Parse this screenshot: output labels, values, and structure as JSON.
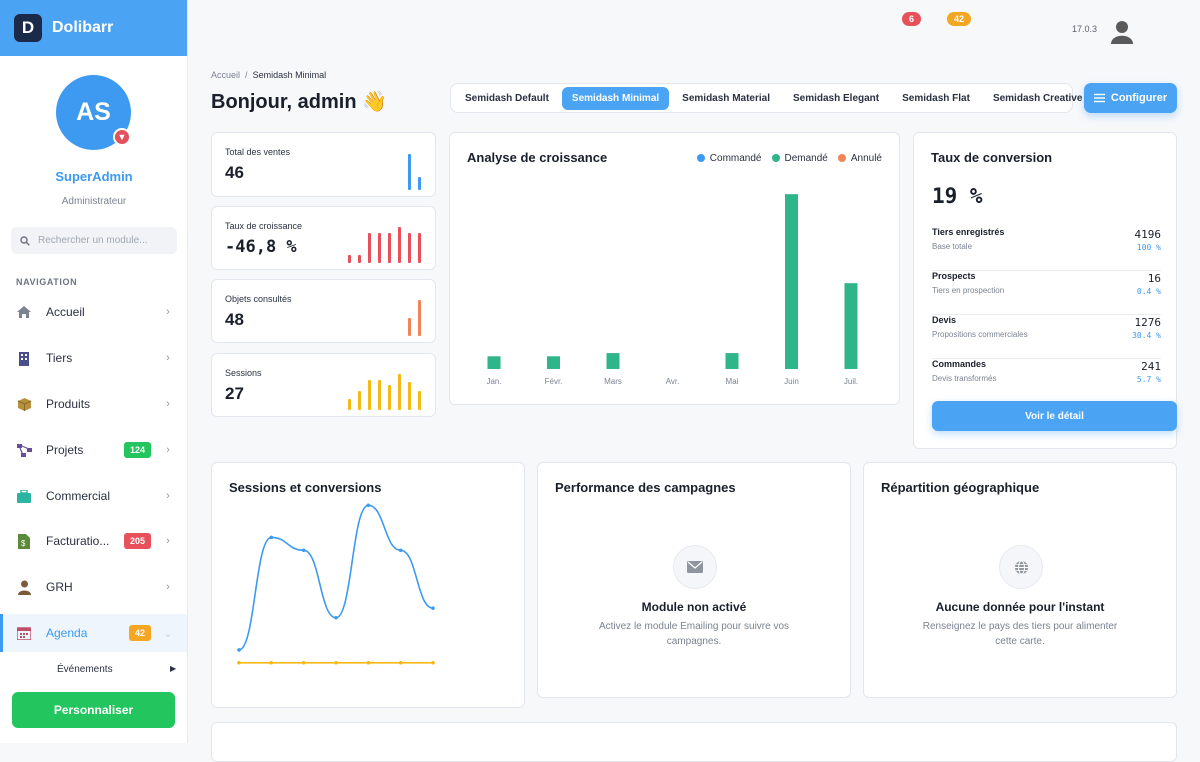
{
  "brand": {
    "name": "Dolibarr",
    "logo_letter": "D"
  },
  "user": {
    "initials": "AS",
    "name": "SuperAdmin",
    "role": "Administrateur"
  },
  "search": {
    "placeholder": "Rechercher un module..."
  },
  "nav": {
    "section_label": "NAVIGATION",
    "items": [
      {
        "label": "Accueil",
        "icon": "home-icon"
      },
      {
        "label": "Tiers",
        "icon": "building-icon"
      },
      {
        "label": "Produits",
        "icon": "box-icon"
      },
      {
        "label": "Projets",
        "icon": "project-icon",
        "badge": "124"
      },
      {
        "label": "Commercial",
        "icon": "briefcase-icon"
      },
      {
        "label": "Facturatio...",
        "icon": "invoice-icon",
        "badge": "205"
      },
      {
        "label": "GRH",
        "icon": "user-icon"
      },
      {
        "label": "Agenda",
        "icon": "calendar-icon",
        "badge": "42"
      }
    ],
    "subitem": "Événements",
    "customize_label": "Personnaliser"
  },
  "topbar": {
    "badge_red": "6",
    "badge_orange": "42",
    "version": "17.0.3"
  },
  "breadcrumb": {
    "root": "Accueil",
    "separator": "/",
    "current": "Semidash Minimal"
  },
  "greeting": "Bonjour, admin 👋",
  "tabs": [
    "Semidash Default",
    "Semidash Minimal",
    "Semidash Material",
    "Semidash Elegant",
    "Semidash Flat",
    "Semidash Creative"
  ],
  "active_tab": "Semidash Minimal",
  "configure_label": "Configurer",
  "kpis": [
    {
      "label": "Total des ventes",
      "value": "46",
      "color": "#3d9af0"
    },
    {
      "label": "Taux de croissance",
      "value": "-46,8 %",
      "color": "#e8505b"
    },
    {
      "label": "Objets consultés",
      "value": "48",
      "color": "#f0855a"
    },
    {
      "label": "Sessions",
      "value": "27",
      "color": "#f5b915"
    }
  ],
  "growth": {
    "title": "Analyse de croissance",
    "legend": [
      {
        "label": "Commandé",
        "color": "#3d9af0"
      },
      {
        "label": "Demandé",
        "color": "#2fb58a"
      },
      {
        "label": "Annulé",
        "color": "#f0855a"
      }
    ]
  },
  "conversion": {
    "title": "Taux de conversion",
    "rate": "19 %",
    "rows": [
      {
        "title": "Tiers enregistrés",
        "sub": "Base totale",
        "num": "4196",
        "pct": "100 %"
      },
      {
        "title": "Prospects",
        "sub": "Tiers en prospection",
        "num": "16",
        "pct": "0.4 %"
      },
      {
        "title": "Devis",
        "sub": "Propositions commerciales",
        "num": "1276",
        "pct": "30.4 %"
      },
      {
        "title": "Commandes",
        "sub": "Devis transformés",
        "num": "241",
        "pct": "5.7 %"
      }
    ],
    "button": "Voir le détail"
  },
  "sessions_card": {
    "title": "Sessions et conversions"
  },
  "campaigns": {
    "title": "Performance des campagnes",
    "empty_title": "Module non activé",
    "empty_text": "Activez le module Emailing pour suivre vos campagnes."
  },
  "geo": {
    "title": "Répartition géographique",
    "empty_title": "Aucune donnée pour l'instant",
    "empty_text": "Renseignez le pays des tiers pour alimenter cette carte."
  },
  "chart_data": [
    {
      "type": "bar",
      "categories": [
        "Jan.",
        "Févr.",
        "Mars",
        "Avr.",
        "Mai",
        "Juin",
        "Juil."
      ],
      "series": [
        {
          "name": "Commandé",
          "values": [
            0,
            0,
            0,
            0,
            0,
            0,
            0
          ]
        },
        {
          "name": "Demandé",
          "values": [
            4,
            4,
            5,
            0,
            5,
            55,
            27
          ]
        },
        {
          "name": "Annulé",
          "values": [
            0,
            0,
            0,
            0,
            0,
            0,
            0
          ]
        }
      ],
      "title": "Analyse de croissance",
      "ylim": [
        0,
        56
      ],
      "grid": false,
      "legend": "top-right"
    },
    {
      "type": "line",
      "x": [
        1,
        2,
        3,
        4,
        5,
        6,
        7
      ],
      "series": [
        {
          "values": [
            5,
            40,
            36,
            15,
            50,
            36,
            18
          ],
          "color": "#3d9af0"
        },
        {
          "values": [
            1,
            1,
            1,
            1,
            1,
            1,
            1
          ],
          "color": "#f5b915"
        }
      ],
      "title": "Sessions et conversions",
      "ylim": [
        0,
        56
      ],
      "grid": false
    },
    {
      "type": "bar",
      "title": "Total des ventes",
      "values": [
        33,
        12
      ],
      "ylim": [
        0,
        33
      ]
    },
    {
      "type": "bar",
      "title": "Taux de croissance",
      "values": [
        8,
        8,
        28,
        28,
        28,
        34,
        28,
        28
      ],
      "ylim": [
        0,
        34
      ]
    },
    {
      "type": "bar",
      "title": "Objets consultés",
      "values": [
        18,
        36
      ],
      "ylim": [
        0,
        36
      ]
    },
    {
      "type": "bar",
      "title": "Sessions",
      "values": [
        10,
        18,
        28,
        28,
        24,
        34,
        26,
        18
      ],
      "ylim": [
        0,
        34
      ]
    }
  ]
}
